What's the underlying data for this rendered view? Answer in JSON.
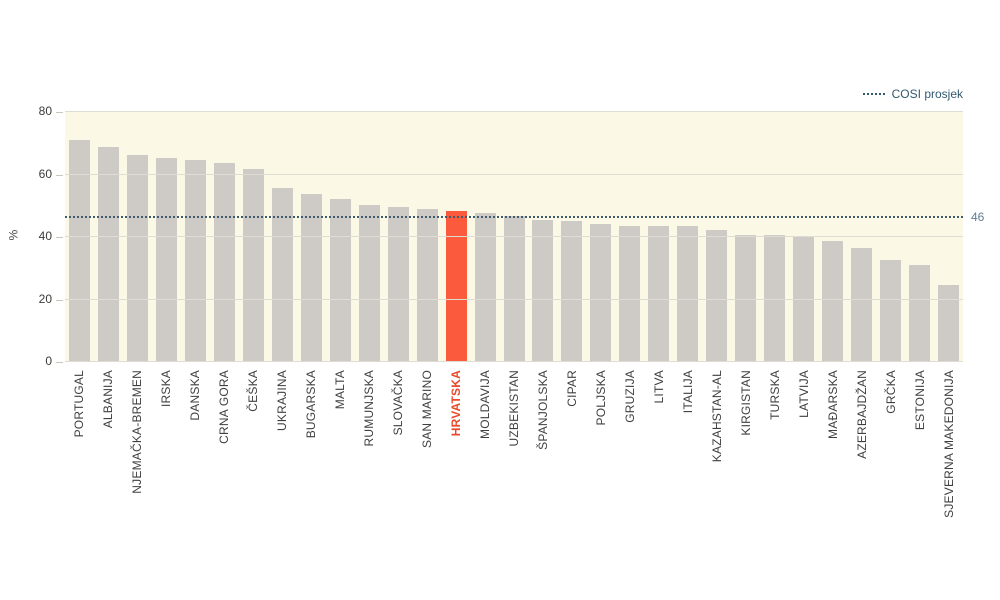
{
  "legend": {
    "label": "COSI prosjek"
  },
  "y_axis_label": "%",
  "reference_line": {
    "label": "46",
    "value": 46
  },
  "chart_data": {
    "type": "bar",
    "title": "",
    "xlabel": "",
    "ylabel": "%",
    "ylim": [
      0,
      80
    ],
    "yticks": [
      0,
      20,
      40,
      60,
      80
    ],
    "grid": true,
    "legend_position": "top-right",
    "legend_entries": [
      "COSI prosjek"
    ],
    "categories": [
      "PORTUGAL",
      "ALBANIJA",
      "NJEMAČKA-BREMEN",
      "IRSKA",
      "DANSKA",
      "CRNA GORA",
      "ČEŠKA",
      "UKRAJINA",
      "BUGARSKA",
      "MALTA",
      "RUMUNJSKA",
      "SLOVAČKA",
      "SAN MARINO",
      "HRVATSKA",
      "MOLDAVIJA",
      "UZBEKISTAN",
      "ŠPANJOLSKA",
      "CIPAR",
      "POLJSKA",
      "GRUZIJA",
      "LITVA",
      "ITALIJA",
      "KAZAHSTAN-AL",
      "KIRGISTAN",
      "TURSKA",
      "LATVIJA",
      "MAĐARSKA",
      "AZERBAJDŽAN",
      "GRČKA",
      "ESTONIJA",
      "SJEVERNA MAKEDONIJA"
    ],
    "values": [
      71,
      68.8,
      66.3,
      65.2,
      64.6,
      63.6,
      61.8,
      55.6,
      53.9,
      52.1,
      50.4,
      49.6,
      48.9,
      48.4,
      47.7,
      46.6,
      45.6,
      45,
      44.1,
      43.5,
      43.4,
      43.4,
      42.4,
      40.7,
      40.5,
      40.3,
      38.8,
      36.6,
      32.6,
      31.2,
      24.6
    ],
    "highlight_category": "HRVATSKA",
    "highlight_index": 13,
    "reference_line": {
      "label": "COSI prosjek",
      "value": 46,
      "value_label": "46"
    },
    "colors": {
      "bar": "#CECAC6",
      "highlight_bar": "#FB5A3C",
      "highlight_label": "#E8492A",
      "plot_background": "#FBF8E6",
      "gridline": "#DFDCD3",
      "reference_line": "#3E5C6E",
      "reference_value_label": "#5E7E95",
      "legend_text": "#33596E",
      "axis_text": "#3F3F3F"
    }
  }
}
